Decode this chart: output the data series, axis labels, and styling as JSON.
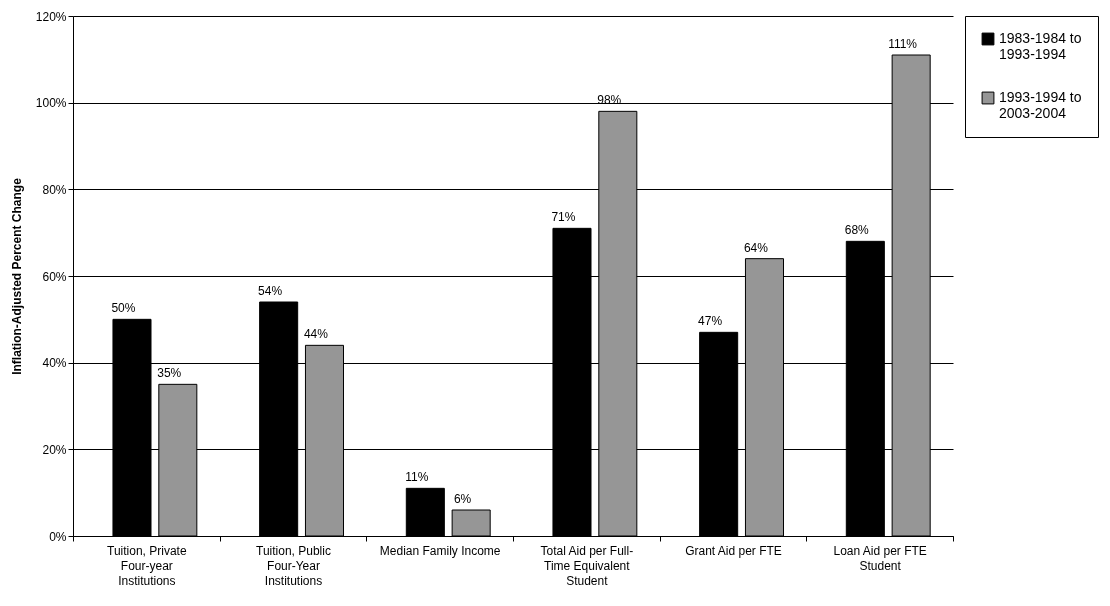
{
  "chart_data": {
    "type": "bar",
    "ylabel": "Inflation-Adjusted Percent Change",
    "categories": [
      "Tuition, Private Four-year Institutions",
      "Tuition, Public Four-Year Institutions",
      "Median Family Income",
      "Total Aid per Full-Time Equivalent Student",
      "Grant Aid per FTE",
      "Loan Aid per FTE Student"
    ],
    "series": [
      {
        "name": "1983-1984 to 1993-1994",
        "color": "#000000",
        "values": [
          50,
          54,
          11,
          71,
          47,
          68
        ]
      },
      {
        "name": "1993-1994 to 2003-2004",
        "color": "#969696",
        "values": [
          35,
          44,
          6,
          98,
          64,
          111
        ]
      }
    ],
    "ylim": [
      0,
      120
    ],
    "yticks": [
      {
        "value": 0,
        "label": "0%"
      },
      {
        "value": 20,
        "label": "20%"
      },
      {
        "value": 40,
        "label": "40%"
      },
      {
        "value": 60,
        "label": "60%"
      },
      {
        "value": 80,
        "label": "80%"
      },
      {
        "value": 100,
        "label": "100%"
      },
      {
        "value": 120,
        "label": "120%"
      }
    ],
    "value_labels": [
      [
        "50%",
        "54%",
        "11%",
        "71%",
        "47%",
        "68%"
      ],
      [
        "35%",
        "44%",
        "6%",
        "98%",
        "64%",
        "111%"
      ]
    ],
    "grid": "y",
    "legend": "right"
  }
}
